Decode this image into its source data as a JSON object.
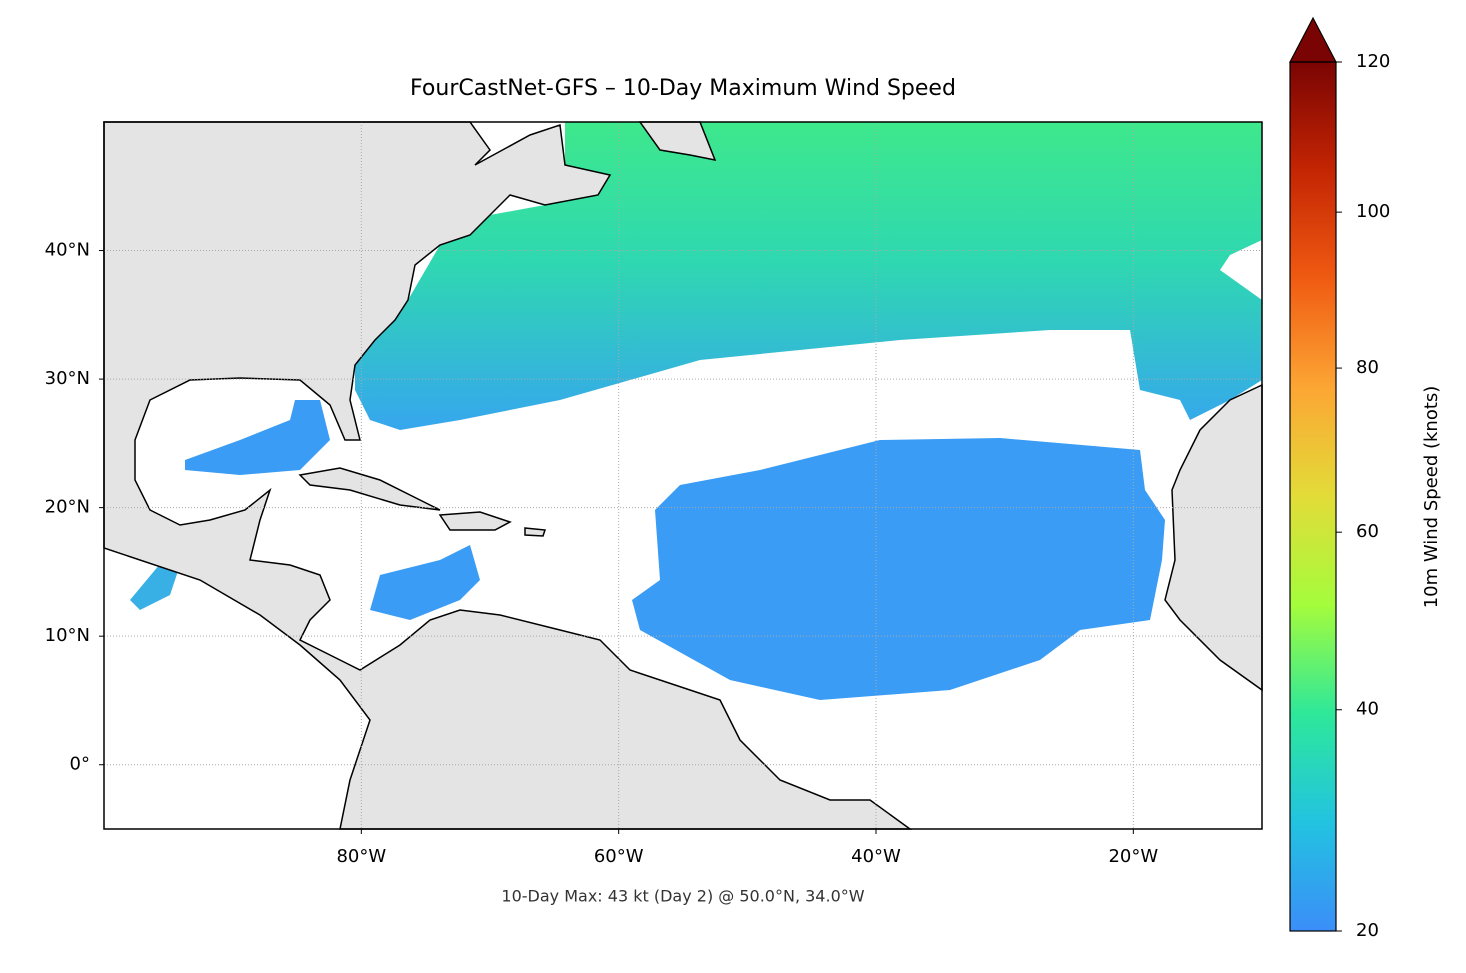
{
  "map": {
    "title": "FourCastNet-GFS – 10-Day Maximum Wind Speed",
    "footnote": "10-Day Max: 43 kt (Day 2) @ 50.0°N, 34.0°W",
    "xlim": [
      -100,
      -10
    ],
    "ylim": [
      -5,
      50
    ],
    "xticks": [
      {
        "value": -80,
        "label": "80°W"
      },
      {
        "value": -60,
        "label": "60°W"
      },
      {
        "value": -40,
        "label": "40°W"
      },
      {
        "value": -20,
        "label": "20°W"
      }
    ],
    "yticks": [
      {
        "value": 0,
        "label": "0°"
      },
      {
        "value": 10,
        "label": "10°N"
      },
      {
        "value": 20,
        "label": "20°N"
      },
      {
        "value": 30,
        "label": "30°N"
      },
      {
        "value": 40,
        "label": "40°N"
      }
    ],
    "grid": true
  },
  "colorbar": {
    "label": "10m Wind Speed (knots)",
    "lim": [
      20,
      120
    ],
    "ticks": [
      20,
      40,
      60,
      80,
      100,
      120
    ],
    "gamma": 0.85,
    "colors": [
      "#3b8ef8",
      "#22c3e0",
      "#2ee89a",
      "#a4fc3c",
      "#e2dc38",
      "#fca634",
      "#f05b12",
      "#c42503",
      "#7a0403"
    ]
  }
}
